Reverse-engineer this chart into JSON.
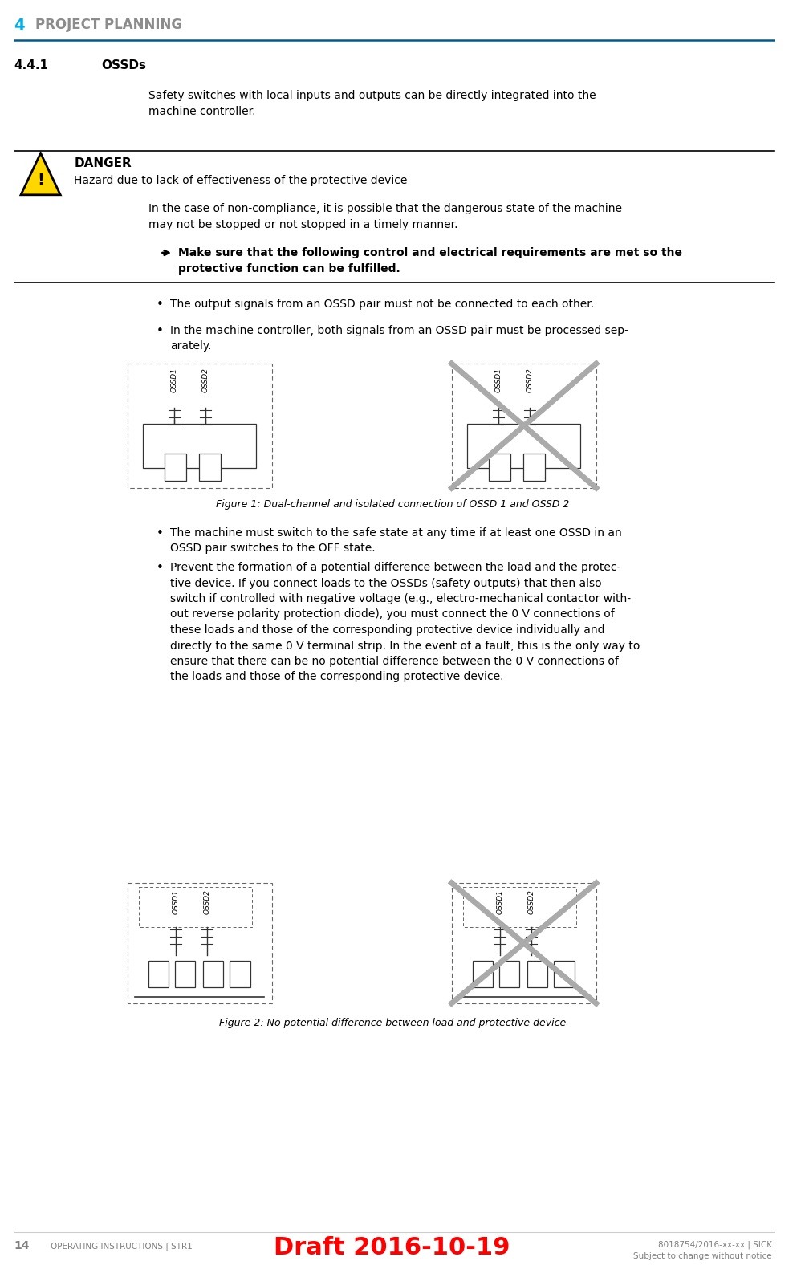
{
  "page_width": 10.04,
  "page_height": 15.81,
  "background_color": "#ffffff",
  "header_number": "4",
  "header_text": "PROJECT PLANNING",
  "header_number_color": "#00AEEF",
  "header_text_color": "#8C8C8C",
  "header_line_color": "#005B8E",
  "section_number": "4.4.1",
  "section_title": "OSSDs",
  "intro_text": "Safety switches with local inputs and outputs can be directly integrated into the\nmachine controller.",
  "danger_header": "DANGER",
  "danger_subheader": "Hazard due to lack of effectiveness of the protective device",
  "danger_body": "In the case of non-compliance, it is possible that the dangerous state of the machine\nmay not be stopped or not stopped in a timely manner.",
  "danger_action": "Make sure that the following control and electrical requirements are met so the\nprotective function can be fulfilled.",
  "bullet1": "The output signals from an OSSD pair must not be connected to each other.",
  "bullet2": "In the machine controller, both signals from an OSSD pair must be processed sep‑\narately.",
  "figure1_caption": "Figure 1: Dual-channel and isolated connection of OSSD 1 and OSSD 2",
  "bullet3": "The machine must switch to the safe state at any time if at least one OSSD in an\nOSSD pair switches to the OFF state.",
  "bullet4": "Prevent the formation of a potential difference between the load and the protec‑\ntive device. If you connect loads to the OSSDs (safety outputs) that then also\nswitch if controlled with negative voltage (e.g., electro-mechanical contactor with‑\nout reverse polarity protection diode), you must connect the 0 V connections of\nthese loads and those of the corresponding protective device individually and\ndirectly to the same 0 V terminal strip. In the event of a fault, this is the only way to\nensure that there can be no potential difference between the 0 V connections of\nthe loads and those of the corresponding protective device.",
  "figure2_caption": "Figure 2: No potential difference between load and protective device",
  "footer_page": "14",
  "footer_left": "OPERATING INSTRUCTIONS | STR1",
  "footer_center": "Draft 2016-10-19",
  "footer_right": "8018754/2016-xx-xx | SICK\nSubject to change without notice",
  "footer_center_color": "#FF0000",
  "footer_text_color": "#7F7F7F",
  "triangle_color": "#FFD700",
  "triangle_border_color": "#000000",
  "text_color": "#000000",
  "line_color_dark": "#000000",
  "line_color_blue": "#005B8E",
  "diagram_border_color": "#666666",
  "diagram_inner_color": "#333333",
  "cross_color": "#AAAAAA"
}
